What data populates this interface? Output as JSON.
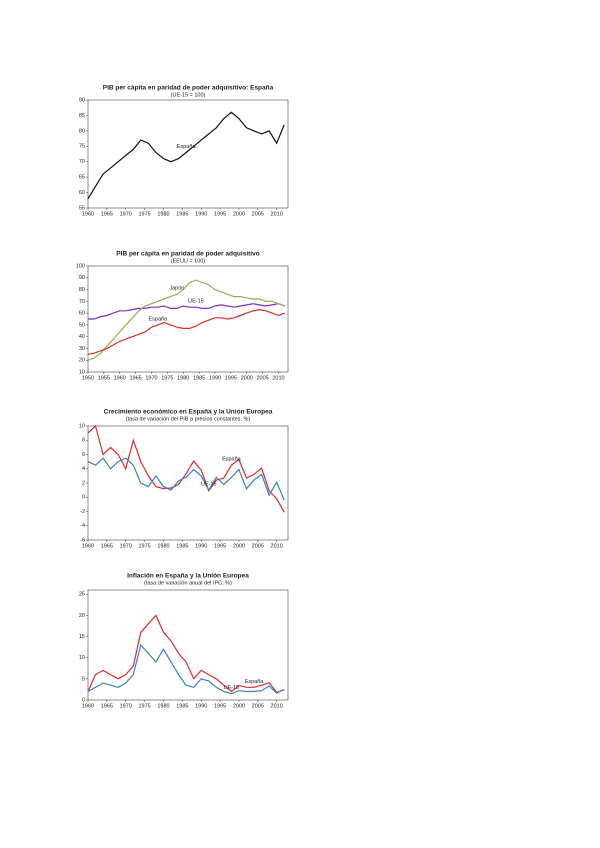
{
  "chart_data": [
    {
      "type": "line",
      "title": "PIB per cápita en paridad de poder adquisitivo: España",
      "subtitle": "(UE-15 = 100)",
      "x": [
        1960,
        1962,
        1964,
        1966,
        1968,
        1970,
        1972,
        1974,
        1976,
        1978,
        1980,
        1982,
        1984,
        1986,
        1988,
        1990,
        1992,
        1994,
        1996,
        1998,
        2000,
        2002,
        2004,
        2006,
        2008,
        2010,
        2012
      ],
      "series": [
        {
          "name": "España",
          "color": "#111111",
          "values": [
            58,
            62,
            66,
            68,
            70,
            72,
            74,
            77,
            76,
            73,
            71,
            70,
            71,
            73,
            75,
            77,
            79,
            81,
            84,
            86,
            84,
            81,
            80,
            79,
            80,
            76,
            82
          ]
        }
      ],
      "xlim": [
        1960,
        2013
      ],
      "xticks": [
        1960,
        1965,
        1970,
        1975,
        1980,
        1985,
        1990,
        1995,
        2000,
        2005,
        2010
      ],
      "ylim": [
        55,
        90
      ],
      "yticks": [
        55,
        60,
        65,
        70,
        75,
        80,
        85,
        90
      ]
    },
    {
      "type": "line",
      "title": "PIB per cápita en paridad de poder adquisitivo",
      "subtitle": "(EEUU = 100)",
      "x": [
        1950,
        1952,
        1954,
        1956,
        1958,
        1960,
        1962,
        1964,
        1966,
        1968,
        1970,
        1972,
        1974,
        1976,
        1978,
        1980,
        1982,
        1984,
        1986,
        1988,
        1990,
        1992,
        1994,
        1996,
        1998,
        2000,
        2002,
        2004,
        2006,
        2008,
        2010,
        2012
      ],
      "series": [
        {
          "name": "UE-15",
          "color": "#7b2fc0",
          "values": [
            55,
            55,
            57,
            58,
            60,
            62,
            62,
            63,
            64,
            64,
            65,
            65,
            66,
            64,
            64,
            66,
            65,
            65,
            64,
            64,
            66,
            67,
            66,
            65,
            66,
            67,
            68,
            67,
            66,
            67,
            68,
            66
          ]
        },
        {
          "name": "Japón",
          "color": "#8db04a",
          "values": [
            20,
            22,
            26,
            32,
            38,
            44,
            50,
            56,
            62,
            66,
            68,
            70,
            72,
            74,
            76,
            80,
            86,
            88,
            86,
            84,
            80,
            78,
            76,
            74,
            74,
            73,
            72,
            72,
            70,
            70,
            68,
            66
          ]
        },
        {
          "name": "España",
          "color": "#e02a2a",
          "values": [
            25,
            26,
            28,
            30,
            33,
            36,
            38,
            40,
            42,
            44,
            48,
            50,
            52,
            50,
            48,
            47,
            47,
            49,
            52,
            54,
            56,
            56,
            55,
            56,
            58,
            60,
            62,
            63,
            62,
            60,
            58,
            60
          ]
        }
      ],
      "xlim": [
        1950,
        2013
      ],
      "xticks": [
        1950,
        1955,
        1960,
        1965,
        1970,
        1975,
        1980,
        1985,
        1990,
        1995,
        2000,
        2005,
        2010
      ],
      "ylim": [
        10,
        100
      ],
      "yticks": [
        10,
        20,
        30,
        40,
        50,
        60,
        70,
        80,
        90,
        100
      ]
    },
    {
      "type": "line",
      "title": "Crecimiento económico en España y la Unión Europea",
      "subtitle": "(tasa de variación del PIB a precios constantes, %)",
      "x": [
        1960,
        1962,
        1964,
        1966,
        1968,
        1970,
        1972,
        1974,
        1976,
        1978,
        1980,
        1982,
        1984,
        1986,
        1988,
        1990,
        1992,
        1994,
        1996,
        1998,
        2000,
        2002,
        2004,
        2006,
        2008,
        2010,
        2012
      ],
      "series": [
        {
          "name": "España",
          "color": "#e02a2a",
          "values": [
            9,
            10,
            6,
            7,
            6,
            4,
            8,
            5,
            3,
            1.5,
            1.2,
            1.3,
            1.8,
            3.3,
            5.1,
            3.8,
            0.9,
            2.4,
            2.7,
            4.5,
            5.3,
            2.7,
            3.2,
            4.1,
            0.9,
            -0.2,
            -2.1
          ]
        },
        {
          "name": "UE-15",
          "color": "#3a7fc4",
          "values": [
            5,
            4.5,
            5.5,
            4,
            5,
            5.5,
            4.5,
            2,
            1.5,
            3,
            1.5,
            1,
            2.3,
            2.8,
            3.9,
            3,
            1,
            2.8,
            1.8,
            2.8,
            3.9,
            1.2,
            2.4,
            3.2,
            0.3,
            2.1,
            -0.4
          ]
        }
      ],
      "xlim": [
        1960,
        2013
      ],
      "xticks": [
        1960,
        1965,
        1970,
        1975,
        1980,
        1985,
        1990,
        1995,
        2000,
        2005,
        2010
      ],
      "ylim": [
        -6,
        10
      ],
      "yticks": [
        -6,
        -4,
        -2,
        0,
        2,
        4,
        6,
        8,
        10
      ]
    },
    {
      "type": "line",
      "title": "Inflación en España y la Unión Europea",
      "subtitle": "(tasa de variación anual del IPC, %)",
      "x": [
        1960,
        1962,
        1964,
        1966,
        1968,
        1970,
        1972,
        1974,
        1976,
        1978,
        1980,
        1982,
        1984,
        1986,
        1988,
        1990,
        1992,
        1994,
        1996,
        1998,
        2000,
        2002,
        2004,
        2006,
        2008,
        2010,
        2012
      ],
      "series": [
        {
          "name": "España",
          "color": "#e02a2a",
          "values": [
            2,
            6,
            7,
            6,
            5,
            6,
            8,
            16,
            18,
            20,
            16,
            14,
            11,
            9,
            5,
            7,
            6,
            5,
            3.5,
            2,
            3.4,
            3,
            3,
            3.5,
            4.1,
            1.8,
            2.4
          ]
        },
        {
          "name": "UE-15",
          "color": "#3a7fc4",
          "values": [
            2,
            3,
            4,
            3.5,
            3,
            4,
            6,
            13,
            11,
            9,
            12,
            9,
            6,
            3.5,
            3,
            5,
            4.5,
            3,
            2,
            1.5,
            2.2,
            2,
            2,
            2.2,
            3.3,
            1.6,
            2.5
          ]
        }
      ],
      "xlim": [
        1960,
        2013
      ],
      "xticks": [
        1960,
        1965,
        1970,
        1975,
        1980,
        1985,
        1990,
        1995,
        2000,
        2005,
        2010
      ],
      "ylim": [
        0,
        26
      ],
      "yticks": [
        0,
        5,
        10,
        15,
        20,
        25
      ]
    }
  ]
}
